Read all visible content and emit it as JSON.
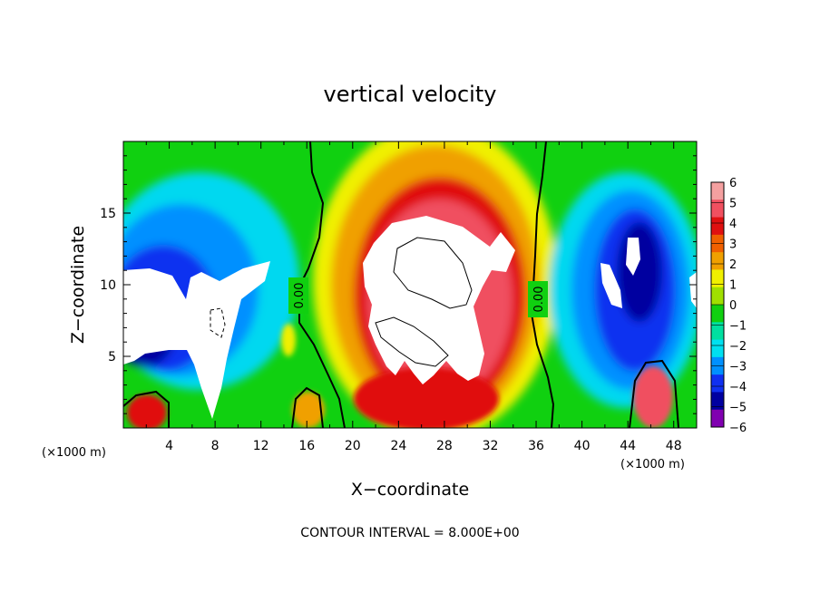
{
  "chart_data": {
    "type": "heatmap",
    "title": "vertical velocity",
    "xlabel": "X−coordinate",
    "ylabel": "Z−coordinate",
    "x_unit_left": "(×1000 m)",
    "x_unit_right": "(×1000 m)",
    "xlim": [
      0,
      50
    ],
    "ylim": [
      0,
      20
    ],
    "x_ticks": [
      4,
      8,
      12,
      16,
      20,
      24,
      28,
      32,
      36,
      40,
      44,
      48
    ],
    "y_ticks": [
      5,
      10,
      15
    ],
    "colorbar": {
      "levels": [
        6,
        5,
        4,
        3,
        2,
        1,
        0,
        -1,
        -2,
        -3,
        -4,
        -5,
        -6
      ],
      "labels": [
        "6",
        "5",
        "4",
        "3",
        "2",
        "1",
        "0",
        "−1",
        "−2",
        "−3",
        "−4",
        "−5",
        "−6"
      ],
      "colors": [
        "#f4a0a0",
        "#f05060",
        "#e01010",
        "#f06000",
        "#f0a000",
        "#f0f000",
        "#a0e000",
        "#10d010",
        "#00e0a0",
        "#00e0f0",
        "#0090ff",
        "#1030f0",
        "#0000a0",
        "#8000b0"
      ]
    },
    "contour_label": "0.00",
    "annotation": "CONTOUR INTERVAL = 8.000E+00"
  }
}
